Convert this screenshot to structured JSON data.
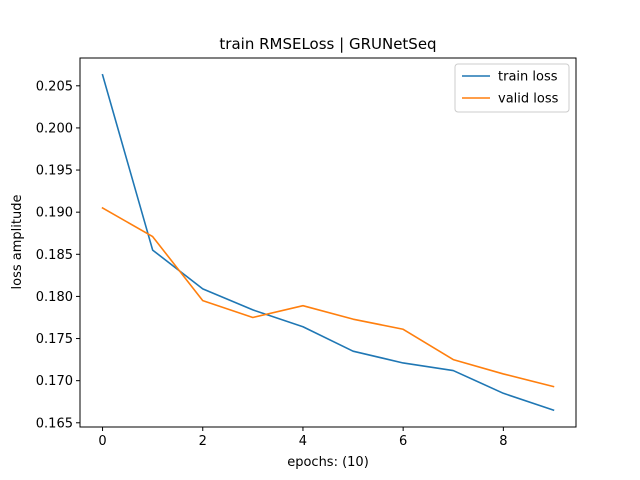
{
  "chart_data": {
    "type": "line",
    "title": "train RMSELoss | GRUNetSeq",
    "xlabel": "epochs: (10)",
    "ylabel": "loss amplitude",
    "x": [
      0,
      1,
      2,
      3,
      4,
      5,
      6,
      7,
      8,
      9
    ],
    "xlim": [
      -0.45,
      9.45
    ],
    "ylim": [
      0.1645,
      0.2083
    ],
    "xticks": [
      0,
      2,
      4,
      6,
      8
    ],
    "yticks": [
      0.165,
      0.17,
      0.175,
      0.18,
      0.185,
      0.19,
      0.195,
      0.2,
      0.205
    ],
    "xtick_labels": [
      "0",
      "2",
      "4",
      "6",
      "8"
    ],
    "ytick_labels": [
      "0.165",
      "0.170",
      "0.175",
      "0.180",
      "0.185",
      "0.190",
      "0.195",
      "0.200",
      "0.205"
    ],
    "grid": false,
    "legend_position": "top-right",
    "series": [
      {
        "name": "train loss",
        "color": "#1f77b4",
        "values": [
          0.2063,
          0.1855,
          0.1809,
          0.1784,
          0.1764,
          0.1735,
          0.1721,
          0.1712,
          0.1685,
          0.1665
        ]
      },
      {
        "name": "valid loss",
        "color": "#ff7f0e",
        "values": [
          0.1905,
          0.1871,
          0.1795,
          0.1775,
          0.1789,
          0.1773,
          0.1761,
          0.1725,
          0.1708,
          0.1693
        ]
      }
    ]
  }
}
